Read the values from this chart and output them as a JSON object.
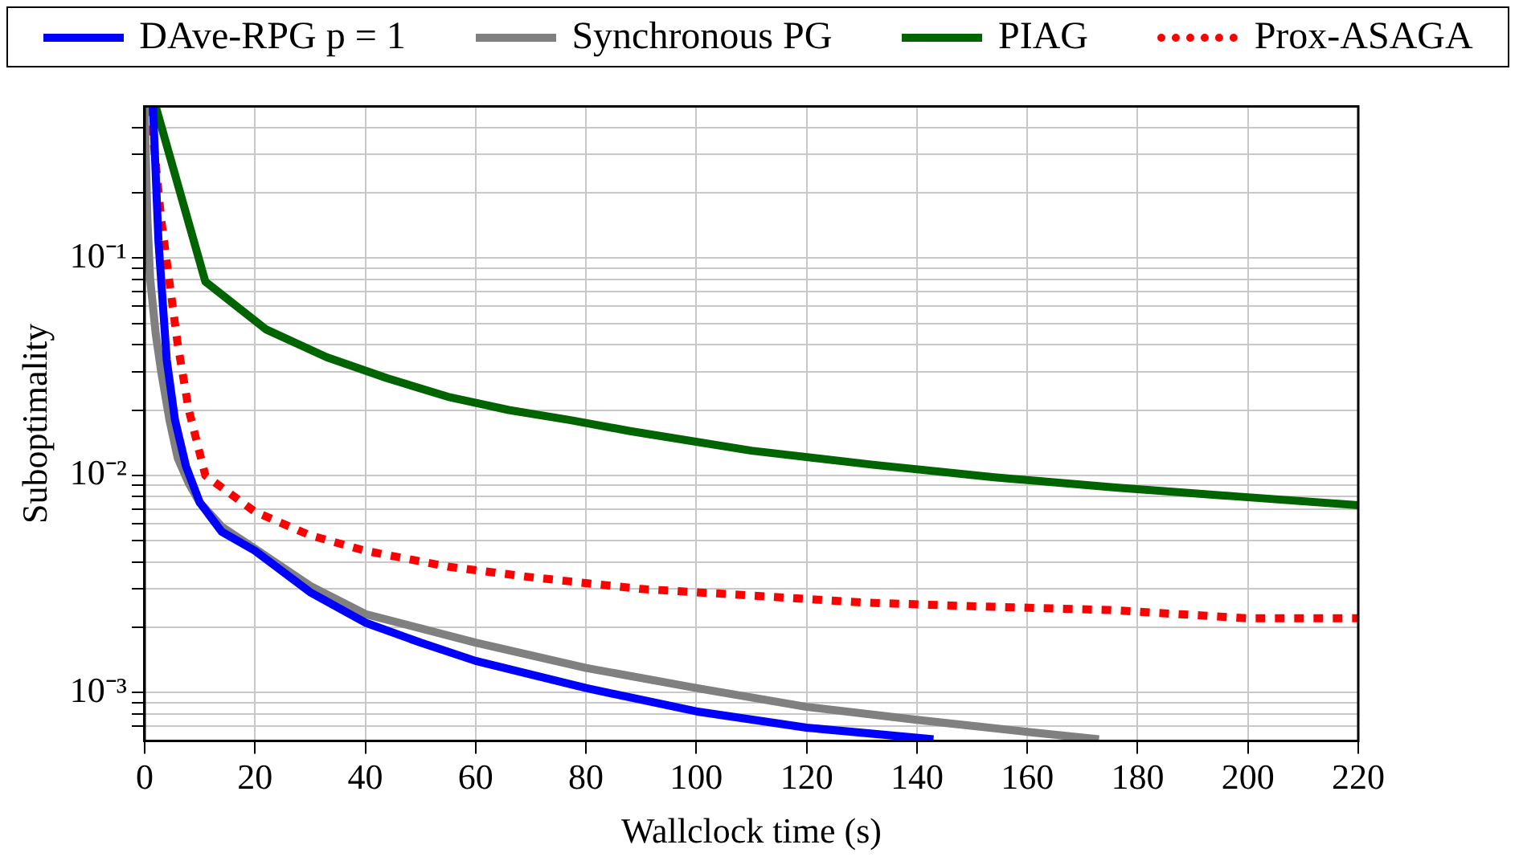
{
  "chart_data": {
    "type": "line",
    "xlabel": "Wallclock time (s)",
    "ylabel": "Suboptimality",
    "log": "y",
    "grid": true,
    "legend": "top",
    "marker": "none",
    "xlim": [
      0,
      220
    ],
    "xticks": [
      0,
      20,
      40,
      60,
      80,
      100,
      120,
      140,
      160,
      180,
      200,
      220
    ],
    "ylim": [
      0.00061,
      0.5
    ],
    "yticks": [
      {
        "value": 0.0007,
        "label": null
      },
      {
        "value": 0.0008,
        "label": null
      },
      {
        "value": 0.0009,
        "label": null
      },
      {
        "value": 0.001,
        "label": "10⁻³"
      },
      {
        "value": 0.002,
        "label": null
      },
      {
        "value": 0.003,
        "label": null
      },
      {
        "value": 0.004,
        "label": null
      },
      {
        "value": 0.005,
        "label": null
      },
      {
        "value": 0.006,
        "label": null
      },
      {
        "value": 0.007,
        "label": null
      },
      {
        "value": 0.008,
        "label": null
      },
      {
        "value": 0.009,
        "label": null
      },
      {
        "value": 0.01,
        "label": "10⁻²"
      },
      {
        "value": 0.02,
        "label": null
      },
      {
        "value": 0.03,
        "label": null
      },
      {
        "value": 0.04,
        "label": null
      },
      {
        "value": 0.05,
        "label": null
      },
      {
        "value": 0.06,
        "label": null
      },
      {
        "value": 0.07,
        "label": null
      },
      {
        "value": 0.08,
        "label": null
      },
      {
        "value": 0.09,
        "label": null
      },
      {
        "value": 0.1,
        "label": "10⁻¹"
      },
      {
        "value": 0.2,
        "label": null
      },
      {
        "value": 0.3,
        "label": null
      },
      {
        "value": 0.4,
        "label": null
      }
    ],
    "series": [
      {
        "name": "DAve-RPG p = 1",
        "color": "#0000ff",
        "line_style": "solid",
        "x": [
          1.5,
          2.5,
          4,
          5.5,
          7.5,
          10,
          14,
          20,
          30,
          40,
          50,
          60,
          80,
          100,
          120,
          143
        ],
        "values": [
          0.5,
          0.12,
          0.034,
          0.018,
          0.011,
          0.0075,
          0.0055,
          0.0045,
          0.0029,
          0.0021,
          0.0017,
          0.0014,
          0.00105,
          0.00082,
          0.00069,
          0.00061
        ]
      },
      {
        "name": "Synchronous PG",
        "color": "#808080",
        "line_style": "solid",
        "x": [
          0,
          0.5,
          1,
          2,
          3,
          4.5,
          6,
          8,
          10,
          14,
          20,
          30,
          40,
          60,
          80,
          100,
          120,
          140,
          160,
          173
        ],
        "values": [
          0.5,
          0.15,
          0.08,
          0.045,
          0.03,
          0.018,
          0.012,
          0.0092,
          0.0075,
          0.0058,
          0.0046,
          0.0031,
          0.0023,
          0.0017,
          0.0013,
          0.00105,
          0.00086,
          0.00075,
          0.00066,
          0.00061
        ]
      },
      {
        "name": "PIAG",
        "color": "#006400",
        "line_style": "solid",
        "x": [
          2,
          11,
          22,
          33,
          44,
          55,
          66,
          77,
          88,
          110,
          132,
          154,
          176,
          198,
          220
        ],
        "values": [
          0.5,
          0.078,
          0.047,
          0.035,
          0.028,
          0.023,
          0.02,
          0.018,
          0.016,
          0.013,
          0.0112,
          0.0098,
          0.0088,
          0.008,
          0.0073
        ]
      },
      {
        "name": "Prox-ASAGA",
        "color": "#ff0000",
        "line_style": "dotted",
        "x": [
          1,
          3,
          6,
          8,
          11,
          20,
          30,
          40,
          55,
          70,
          90,
          110,
          130,
          150,
          175,
          200,
          220
        ],
        "values": [
          0.5,
          0.15,
          0.04,
          0.02,
          0.01,
          0.0068,
          0.0053,
          0.0045,
          0.0038,
          0.0034,
          0.003,
          0.0028,
          0.0026,
          0.0025,
          0.0024,
          0.0022,
          0.0022
        ]
      }
    ]
  }
}
